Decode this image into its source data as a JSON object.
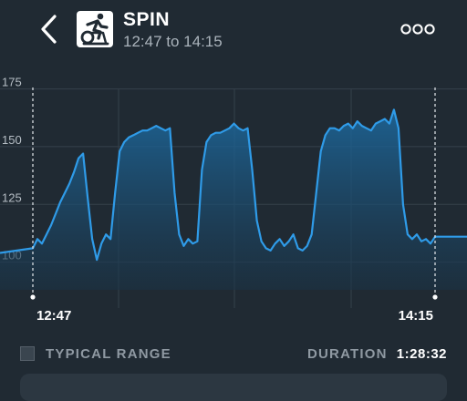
{
  "header": {
    "activity_icon": "spin-bike-icon",
    "title": "SPIN",
    "time_range": "12:47 to 14:15",
    "back_icon": "chevron-left-icon",
    "more_icon": "ellipsis-icon"
  },
  "chart_data": {
    "type": "area",
    "title": "",
    "ylabel": "",
    "xlabel": "",
    "ylim": [
      88,
      178
    ],
    "yticks": [
      100,
      125,
      150,
      175
    ],
    "xlim": [
      0,
      88
    ],
    "start_label": "12:47",
    "end_label": "14:15",
    "grid": true,
    "line_color": "#2f9be8",
    "fill_color": "#1a5c8a",
    "series": [
      {
        "x": [
          0,
          1,
          2,
          3,
          4,
          5,
          6,
          7,
          8,
          9,
          10,
          11,
          12,
          13,
          14,
          15,
          16,
          17,
          18,
          19,
          20,
          21,
          22,
          23,
          24,
          25,
          26,
          27,
          28,
          29,
          30,
          31,
          32,
          33,
          34,
          35,
          36,
          37,
          38,
          39,
          40,
          41,
          42,
          43,
          44,
          45,
          46,
          47,
          48,
          49,
          50,
          51,
          52,
          53,
          54,
          55,
          56,
          57,
          58,
          59,
          60,
          61,
          62,
          63,
          64,
          65,
          66,
          67,
          68,
          69,
          70,
          71,
          72,
          73,
          74,
          75,
          76,
          77,
          78,
          79,
          80,
          81,
          82,
          83,
          84,
          85,
          86,
          87,
          88
        ],
        "values": [
          106,
          110,
          108,
          112,
          116,
          121,
          126,
          130,
          134,
          139,
          145,
          147,
          128,
          110,
          101,
          108,
          112,
          110,
          130,
          148,
          152,
          154,
          155,
          156,
          157,
          157,
          158,
          159,
          158,
          157,
          158,
          130,
          112,
          107,
          110,
          108,
          109,
          140,
          152,
          155,
          156,
          156,
          157,
          158,
          160,
          158,
          157,
          158,
          140,
          118,
          109,
          106,
          105,
          108,
          110,
          107,
          109,
          112,
          106,
          105,
          107,
          112,
          130,
          148,
          155,
          158,
          158,
          157,
          159,
          160,
          158,
          161,
          159,
          158,
          157,
          160,
          161,
          162,
          160,
          166,
          158,
          125,
          112,
          110,
          112,
          109,
          110,
          108,
          111
        ]
      }
    ]
  },
  "footer": {
    "typical_range_label": "TYPICAL RANGE",
    "duration_label": "DURATION",
    "duration_value": "1:28:32"
  }
}
